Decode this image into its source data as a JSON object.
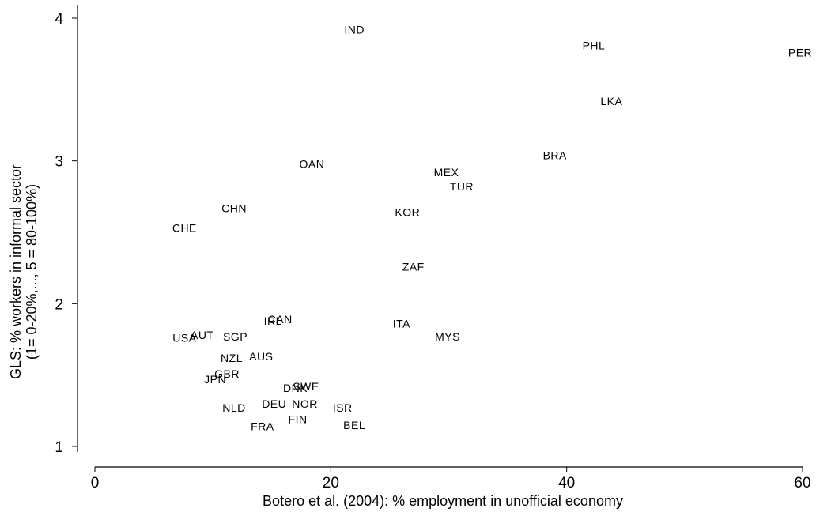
{
  "chart_data": {
    "type": "scatter",
    "title": "",
    "xlabel": "Botero et al. (2004): % employment in unofficial economy",
    "ylabel_line1": "GLS: % workers in informal sector",
    "ylabel_line2": "(1= 0-20%,..., 5 = 80-100%)",
    "xlim": [
      0,
      60
    ],
    "ylim": [
      1,
      4
    ],
    "xticks": [
      "0",
      "20",
      "40",
      "60"
    ],
    "xtick_values": [
      0,
      20,
      40,
      60
    ],
    "yticks": [
      "1",
      "2",
      "3",
      "4"
    ],
    "ytick_values": [
      1,
      2,
      3,
      4
    ],
    "grid": false,
    "points": [
      {
        "label": "IND",
        "x": 22.0,
        "y": 3.92
      },
      {
        "label": "PHL",
        "x": 42.3,
        "y": 3.81
      },
      {
        "label": "PER",
        "x": 59.8,
        "y": 3.76
      },
      {
        "label": "LKA",
        "x": 43.8,
        "y": 3.42
      },
      {
        "label": "BRA",
        "x": 39.0,
        "y": 3.04
      },
      {
        "label": "OAN",
        "x": 18.4,
        "y": 2.98
      },
      {
        "label": "MEX",
        "x": 29.8,
        "y": 2.92
      },
      {
        "label": "TUR",
        "x": 31.1,
        "y": 2.82
      },
      {
        "label": "CHN",
        "x": 11.8,
        "y": 2.67
      },
      {
        "label": "KOR",
        "x": 26.5,
        "y": 2.64
      },
      {
        "label": "CHE",
        "x": 7.6,
        "y": 2.53
      },
      {
        "label": "ZAF",
        "x": 27.0,
        "y": 2.26
      },
      {
        "label": "CAN",
        "x": 15.7,
        "y": 1.89
      },
      {
        "label": "IRL",
        "x": 15.1,
        "y": 1.88
      },
      {
        "label": "ITA",
        "x": 26.0,
        "y": 1.86
      },
      {
        "label": "AUT",
        "x": 9.1,
        "y": 1.78
      },
      {
        "label": "SGP",
        "x": 11.9,
        "y": 1.77
      },
      {
        "label": "USA",
        "x": 7.6,
        "y": 1.76
      },
      {
        "label": "MYS",
        "x": 29.9,
        "y": 1.77
      },
      {
        "label": "NZL",
        "x": 11.6,
        "y": 1.62
      },
      {
        "label": "AUS",
        "x": 14.1,
        "y": 1.63
      },
      {
        "label": "GBR",
        "x": 11.2,
        "y": 1.51
      },
      {
        "label": "JPN",
        "x": 10.2,
        "y": 1.47
      },
      {
        "label": "DNK",
        "x": 17.0,
        "y": 1.41
      },
      {
        "label": "SWE",
        "x": 17.9,
        "y": 1.42
      },
      {
        "label": "NLD",
        "x": 11.8,
        "y": 1.27
      },
      {
        "label": "DEU",
        "x": 15.2,
        "y": 1.3
      },
      {
        "label": "NOR",
        "x": 17.8,
        "y": 1.3
      },
      {
        "label": "ISR",
        "x": 21.0,
        "y": 1.27
      },
      {
        "label": "FIN",
        "x": 17.2,
        "y": 1.19
      },
      {
        "label": "FRA",
        "x": 14.2,
        "y": 1.14
      },
      {
        "label": "BEL",
        "x": 22.0,
        "y": 1.15
      }
    ]
  }
}
